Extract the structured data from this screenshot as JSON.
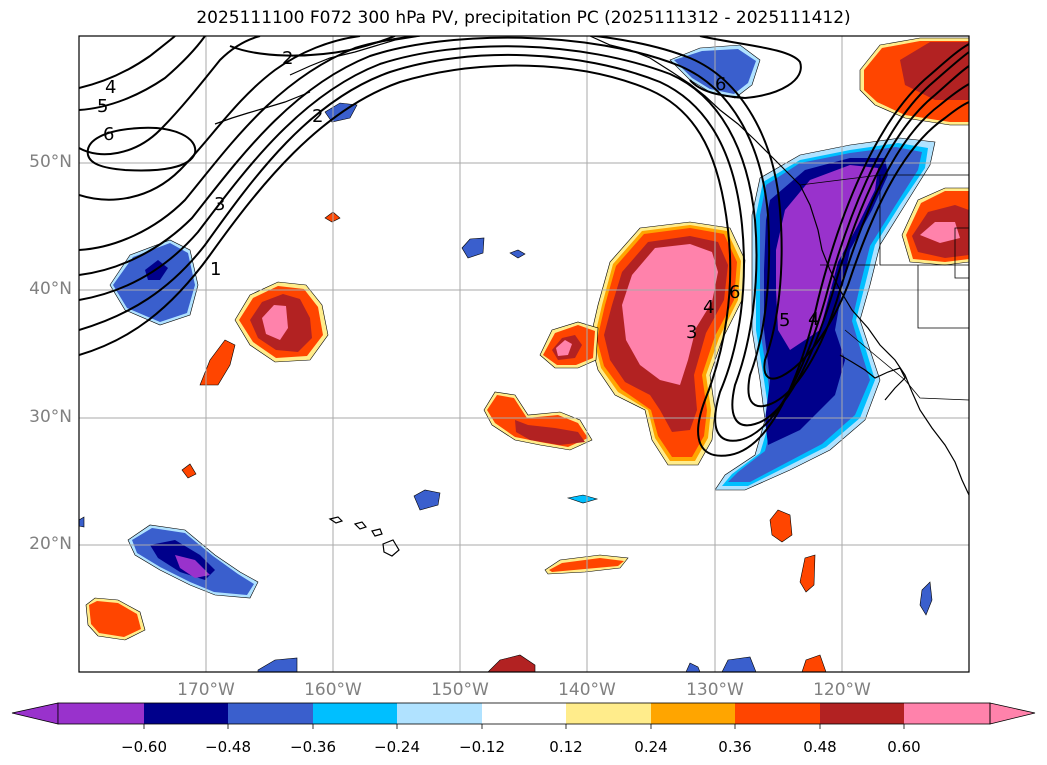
{
  "title": "2025111100 F072 300 hPa PV, precipitation PC (2025111312 - 2025111412)",
  "latitude_labels": [
    "50°N",
    "40°N",
    "30°N",
    "20°N"
  ],
  "longitude_labels": [
    "170°W",
    "160°W",
    "150°W",
    "140°W",
    "130°W",
    "120°W"
  ],
  "contour_labels": [
    "2",
    "4",
    "5",
    "6",
    "2",
    "3",
    "1",
    "6",
    "6",
    "4",
    "3",
    "5",
    "4"
  ],
  "colorbar": {
    "tick_labels": [
      "−0.60",
      "−0.48",
      "−0.36",
      "−0.24",
      "−0.12",
      "0.12",
      "0.24",
      "0.36",
      "0.48",
      "0.60"
    ],
    "colors": [
      "#9932cc",
      "#00008b",
      "#3a5fcd",
      "#00bfff",
      "#b0e2ff",
      "#ffffff",
      "#ffec8b",
      "#ffa500",
      "#ff4500",
      "#b22222",
      "#ff82ab"
    ],
    "extend": "both"
  },
  "palette": {
    "neg_strong": "#9932cc",
    "neg_dark": "#00008b",
    "neg_mid": "#3a5fcd",
    "neg_light": "#00bfff",
    "neg_pale": "#b0e2ff",
    "pos_pale": "#ffec8b",
    "pos_orange": "#ffa500",
    "pos_red": "#ff4500",
    "pos_dark": "#b22222",
    "pos_pink": "#ff82ab"
  }
}
